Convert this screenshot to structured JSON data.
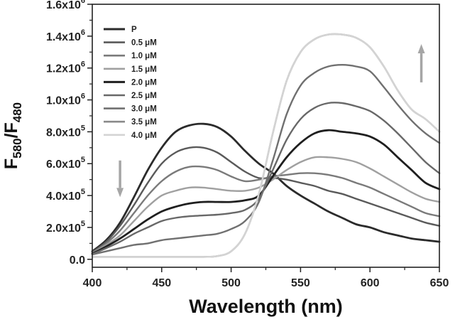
{
  "chart_data": {
    "type": "line",
    "xlabel": "Wavelength (nm)",
    "ylabel_main": "F",
    "ylabel_sub1": "580",
    "ylabel_slash": "/F",
    "ylabel_sub2": "480",
    "xlim": [
      400,
      650
    ],
    "ylim": [
      -50000,
      1600000
    ],
    "x_ticks": [
      400,
      450,
      500,
      550,
      600,
      650
    ],
    "y_ticks": [
      {
        "value": 0,
        "mantissa": "0.0",
        "exp": ""
      },
      {
        "value": 200000,
        "mantissa": "2.0x10",
        "exp": "5"
      },
      {
        "value": 400000,
        "mantissa": "4.0x10",
        "exp": "5"
      },
      {
        "value": 600000,
        "mantissa": "6.0x10",
        "exp": "5"
      },
      {
        "value": 800000,
        "mantissa": "8.0x10",
        "exp": "5"
      },
      {
        "value": 1000000,
        "mantissa": "1.0x10",
        "exp": "6"
      },
      {
        "value": 1200000,
        "mantissa": "1.2x10",
        "exp": "6"
      },
      {
        "value": 1400000,
        "mantissa": "1.4x10",
        "exp": "6"
      },
      {
        "value": 1600000,
        "mantissa": "1.6x10",
        "exp": "6"
      }
    ],
    "legend_position": "upper-center",
    "annotations": [
      {
        "type": "arrow",
        "direction": "down",
        "x": 420,
        "y_from": 620000,
        "y_to": 390000,
        "color": "#a6a6a6"
      },
      {
        "type": "arrow",
        "direction": "up",
        "x": 637,
        "y_from": 1110000,
        "y_to": 1350000,
        "color": "#a6a6a6"
      }
    ],
    "x": [
      400,
      410,
      420,
      430,
      440,
      450,
      460,
      470,
      480,
      490,
      500,
      510,
      520,
      530,
      540,
      550,
      560,
      570,
      580,
      590,
      600,
      610,
      620,
      630,
      640,
      650
    ],
    "series": [
      {
        "name": "P",
        "color": "#2b2b2b",
        "values": [
          50000,
          120000,
          230000,
          390000,
          560000,
          700000,
          800000,
          840000,
          850000,
          830000,
          770000,
          680000,
          600000,
          540000,
          460000,
          400000,
          350000,
          300000,
          260000,
          220000,
          200000,
          170000,
          150000,
          130000,
          120000,
          110000
        ]
      },
      {
        "name": "0.5 μM",
        "color": "#5a5a5a",
        "values": [
          45000,
          110000,
          210000,
          340000,
          480000,
          600000,
          670000,
          700000,
          700000,
          670000,
          610000,
          550000,
          510000,
          510000,
          500000,
          480000,
          460000,
          430000,
          410000,
          380000,
          350000,
          320000,
          290000,
          260000,
          230000,
          210000
        ]
      },
      {
        "name": "1.0 μM",
        "color": "#7a7a7a",
        "values": [
          40000,
          100000,
          180000,
          290000,
          400000,
          490000,
          550000,
          580000,
          580000,
          560000,
          520000,
          490000,
          500000,
          520000,
          530000,
          540000,
          540000,
          530000,
          510000,
          480000,
          450000,
          410000,
          370000,
          330000,
          290000,
          270000
        ]
      },
      {
        "name": "1.5 μM",
        "color": "#a0a0a0",
        "values": [
          38000,
          90000,
          150000,
          240000,
          330000,
          400000,
          430000,
          450000,
          450000,
          440000,
          430000,
          430000,
          450000,
          500000,
          560000,
          610000,
          640000,
          640000,
          630000,
          610000,
          570000,
          520000,
          470000,
          420000,
          380000,
          360000
        ]
      },
      {
        "name": "2.0 μM",
        "color": "#1f1f1f",
        "values": [
          35000,
          80000,
          130000,
          190000,
          250000,
          300000,
          330000,
          350000,
          360000,
          360000,
          360000,
          370000,
          400000,
          520000,
          640000,
          730000,
          790000,
          810000,
          800000,
          790000,
          770000,
          720000,
          640000,
          560000,
          480000,
          440000
        ]
      },
      {
        "name": "2.5 μM",
        "color": "#686868",
        "values": [
          32000,
          70000,
          110000,
          160000,
          200000,
          240000,
          260000,
          270000,
          275000,
          280000,
          290000,
          310000,
          380000,
          560000,
          750000,
          880000,
          950000,
          980000,
          980000,
          960000,
          930000,
          870000,
          790000,
          700000,
          610000,
          540000
        ]
      },
      {
        "name": "3.0 μM",
        "color": "#707070",
        "values": [
          30000,
          50000,
          70000,
          90000,
          100000,
          120000,
          130000,
          140000,
          150000,
          160000,
          190000,
          240000,
          360000,
          620000,
          910000,
          1090000,
          1170000,
          1210000,
          1220000,
          1210000,
          1180000,
          1080000,
          970000,
          870000,
          790000,
          730000
        ]
      },
      {
        "name": "3.5 μM",
        "color": "#8a8a8a",
        "values": [
          15000,
          15000,
          15000,
          15000,
          15000,
          15000,
          15000,
          15000,
          15000,
          20000,
          50000,
          160000,
          410000,
          790000,
          1120000,
          1300000,
          1380000,
          1410000,
          1410000,
          1390000,
          1330000,
          1210000,
          1060000,
          940000,
          880000,
          800000
        ]
      },
      {
        "name": "4.0 μM",
        "color": "#d4d4d4",
        "values": [
          15000,
          15000,
          15000,
          15000,
          15000,
          15000,
          15000,
          15000,
          15000,
          20000,
          50000,
          160000,
          410000,
          790000,
          1120000,
          1300000,
          1380000,
          1410000,
          1410000,
          1390000,
          1330000,
          1210000,
          1060000,
          940000,
          880000,
          800000
        ]
      }
    ]
  }
}
